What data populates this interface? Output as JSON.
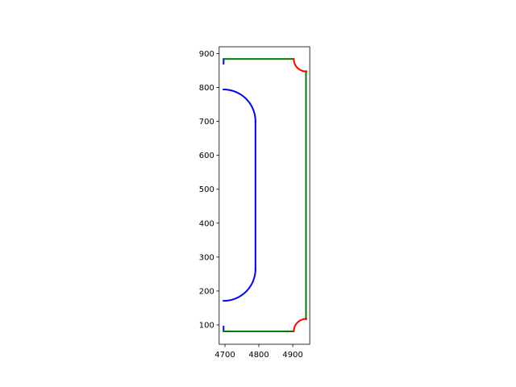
{
  "chart_data": {
    "type": "line",
    "title": "",
    "xlabel": "",
    "ylabel": "",
    "xlim": [
      4683,
      4950
    ],
    "ylim": [
      43,
      920
    ],
    "aspect": "equal",
    "grid": false,
    "legend": "none",
    "xticks": [
      4700,
      4800,
      4900
    ],
    "yticks": [
      100,
      200,
      300,
      400,
      500,
      600,
      700,
      800,
      900
    ],
    "series": [
      {
        "color": "#0000ff",
        "segments": [
          {
            "kind": "line",
            "points": [
              [
                4696,
                81
              ],
              [
                4696,
                95
              ]
            ]
          },
          {
            "kind": "arc",
            "center": [
              4696,
              265
            ],
            "radius": 94,
            "start_deg": 270,
            "end_deg": 360
          },
          {
            "kind": "line",
            "points": [
              [
                4790,
                265
              ],
              [
                4790,
                700
              ]
            ]
          },
          {
            "kind": "arc",
            "center": [
              4696,
              700
            ],
            "radius": 94,
            "start_deg": 0,
            "end_deg": 90
          },
          {
            "kind": "line",
            "points": [
              [
                4696,
                870
              ],
              [
                4696,
                884
              ]
            ]
          }
        ]
      },
      {
        "color": "#008000",
        "segments": [
          {
            "kind": "line",
            "points": [
              [
                4696,
                884
              ],
              [
                4901,
                884
              ]
            ]
          },
          {
            "kind": "line",
            "points": [
              [
                4696,
                81
              ],
              [
                4901,
                81
              ]
            ]
          },
          {
            "kind": "line",
            "points": [
              [
                4939,
                117
              ],
              [
                4939,
                848
              ]
            ]
          }
        ]
      },
      {
        "color": "#ff0000",
        "segments": [
          {
            "kind": "arc",
            "center": [
              4940,
              884
            ],
            "radius": 37,
            "start_deg": 180,
            "end_deg": 270
          },
          {
            "kind": "arc",
            "center": [
              4940,
              81
            ],
            "radius": 37,
            "start_deg": 90,
            "end_deg": 180
          }
        ]
      }
    ]
  }
}
